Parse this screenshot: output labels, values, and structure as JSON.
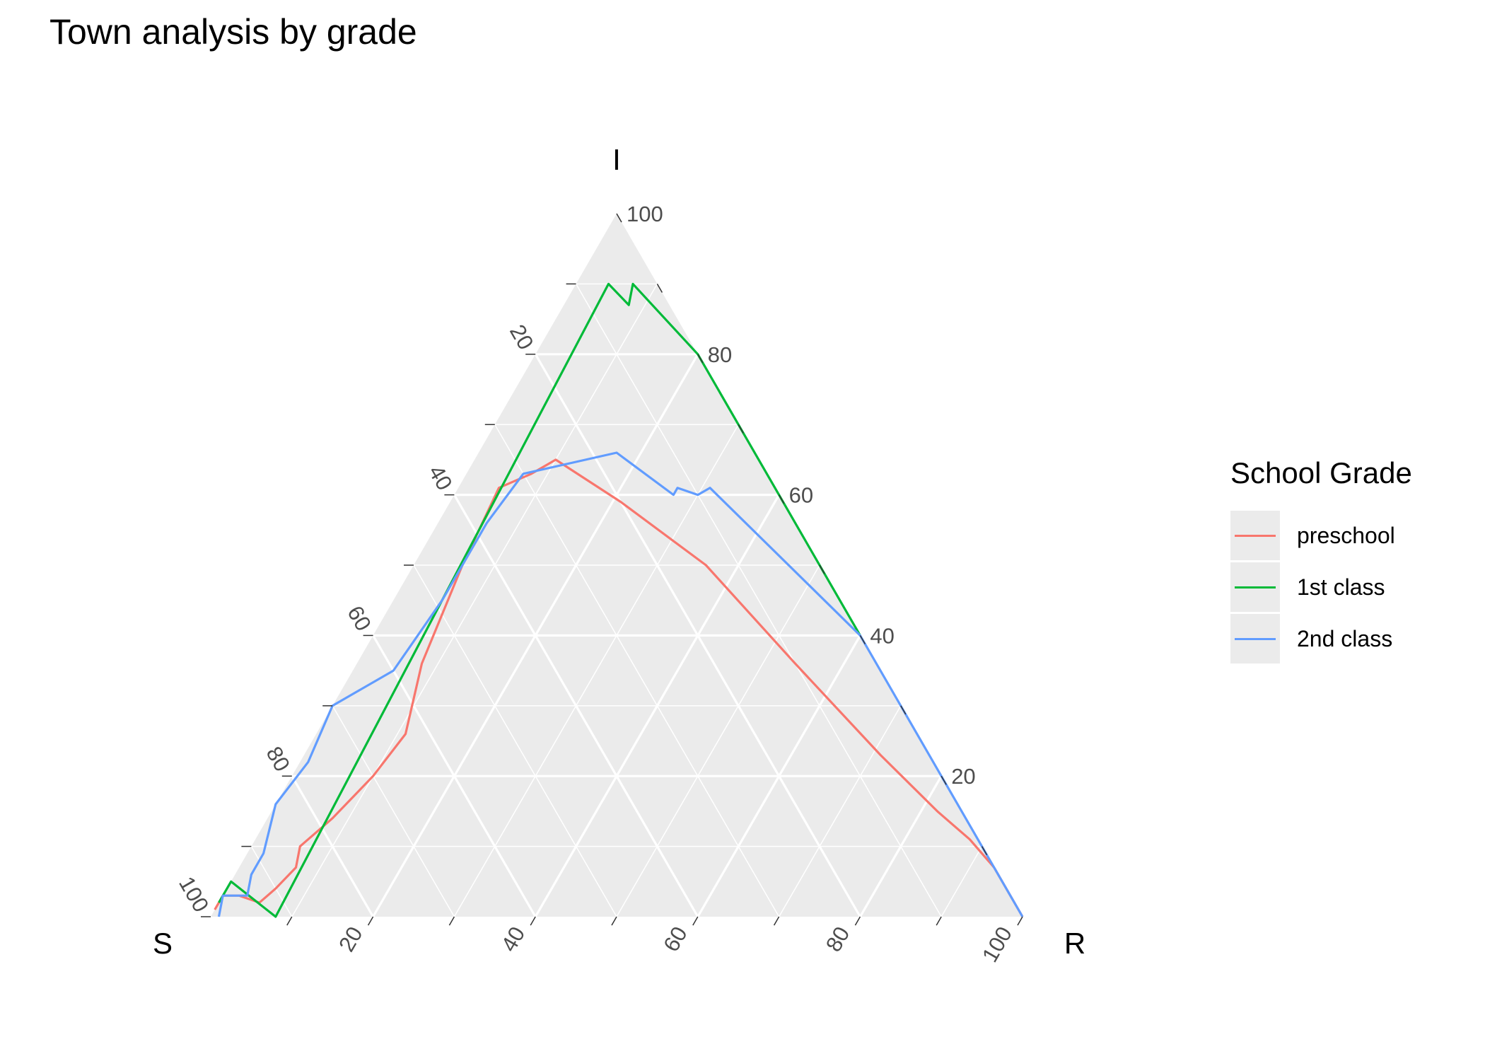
{
  "chart_data": {
    "type": "line",
    "subtype": "ternary",
    "title": "Town analysis by grade",
    "axes": {
      "top": {
        "name": "I",
        "ticks": [
          20,
          40,
          60,
          80,
          100
        ]
      },
      "left": {
        "name": "S",
        "ticks": [
          20,
          40,
          60,
          80,
          100
        ]
      },
      "right": {
        "name": "R",
        "ticks": [
          20,
          40,
          60,
          80,
          100
        ]
      }
    },
    "tick_labels": [
      "20",
      "40",
      "60",
      "80",
      "100"
    ],
    "grid": true,
    "legend": {
      "title": "School Grade",
      "position": "right"
    },
    "series": [
      {
        "name": "preschool",
        "color": "#F8766D",
        "points": [
          {
            "S": 99,
            "I": 1,
            "R": 0
          },
          {
            "S": 97,
            "I": 3,
            "R": 0
          },
          {
            "S": 95,
            "I": 3,
            "R": 2
          },
          {
            "S": 93,
            "I": 2,
            "R": 5
          },
          {
            "S": 90,
            "I": 4,
            "R": 6
          },
          {
            "S": 86,
            "I": 7,
            "R": 7
          },
          {
            "S": 84,
            "I": 10,
            "R": 6
          },
          {
            "S": 78,
            "I": 14,
            "R": 8
          },
          {
            "S": 70,
            "I": 20,
            "R": 10
          },
          {
            "S": 63,
            "I": 26,
            "R": 11
          },
          {
            "S": 56,
            "I": 36,
            "R": 8
          },
          {
            "S": 44,
            "I": 50,
            "R": 6
          },
          {
            "S": 34,
            "I": 61,
            "R": 5
          },
          {
            "S": 29,
            "I": 63,
            "R": 8
          },
          {
            "S": 25,
            "I": 65,
            "R": 10
          },
          {
            "S": 20,
            "I": 59,
            "R": 21
          },
          {
            "S": 14,
            "I": 50,
            "R": 36
          },
          {
            "S": 10,
            "I": 36,
            "R": 54
          },
          {
            "S": 6,
            "I": 23,
            "R": 71
          },
          {
            "S": 3,
            "I": 15,
            "R": 82
          },
          {
            "S": 2,
            "I": 13,
            "R": 85
          },
          {
            "S": 1,
            "I": 11,
            "R": 88
          },
          {
            "S": 0,
            "I": 7,
            "R": 93
          },
          {
            "S": 0,
            "I": 0,
            "R": 100
          }
        ]
      },
      {
        "name": "1st class",
        "color": "#00BA38",
        "points": [
          {
            "S": 98,
            "I": 2,
            "R": 0
          },
          {
            "S": 95,
            "I": 5,
            "R": 0
          },
          {
            "S": 92,
            "I": 0,
            "R": 8
          },
          {
            "S": 6,
            "I": 90,
            "R": 4
          },
          {
            "S": 5,
            "I": 87,
            "R": 8
          },
          {
            "S": 3,
            "I": 90,
            "R": 7
          },
          {
            "S": 0,
            "I": 80,
            "R": 20
          },
          {
            "S": 0,
            "I": 60,
            "R": 40
          },
          {
            "S": 0,
            "I": 40,
            "R": 60
          }
        ]
      },
      {
        "name": "2nd class",
        "color": "#619CFF",
        "points": [
          {
            "S": 99,
            "I": 0,
            "R": 1
          },
          {
            "S": 97,
            "I": 3,
            "R": 0
          },
          {
            "S": 94,
            "I": 3,
            "R": 3
          },
          {
            "S": 92,
            "I": 6,
            "R": 2
          },
          {
            "S": 89,
            "I": 9,
            "R": 2
          },
          {
            "S": 84,
            "I": 16,
            "R": 0
          },
          {
            "S": 77,
            "I": 22,
            "R": 1
          },
          {
            "S": 70,
            "I": 30,
            "R": 0
          },
          {
            "S": 66,
            "I": 32,
            "R": 2
          },
          {
            "S": 60,
            "I": 35,
            "R": 5
          },
          {
            "S": 49,
            "I": 45,
            "R": 6
          },
          {
            "S": 38,
            "I": 56,
            "R": 6
          },
          {
            "S": 30,
            "I": 63,
            "R": 7
          },
          {
            "S": 17,
            "I": 66,
            "R": 17
          },
          {
            "S": 13,
            "I": 60,
            "R": 27
          },
          {
            "S": 12,
            "I": 61,
            "R": 27
          },
          {
            "S": 10,
            "I": 60,
            "R": 30
          },
          {
            "S": 8,
            "I": 61,
            "R": 31
          },
          {
            "S": 0,
            "I": 40,
            "R": 60
          },
          {
            "S": 0,
            "I": 20,
            "R": 80
          },
          {
            "S": 0,
            "I": 0,
            "R": 100
          }
        ]
      }
    ]
  }
}
